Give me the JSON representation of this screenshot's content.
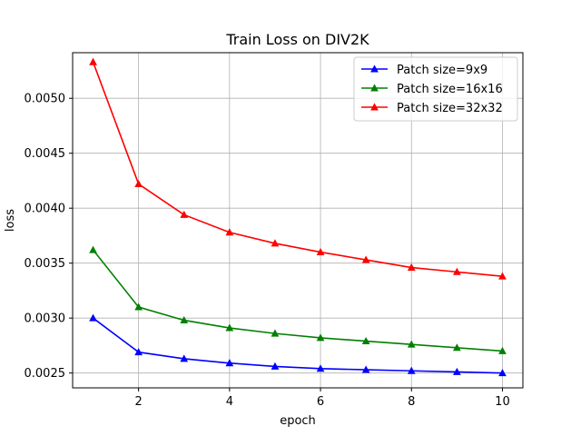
{
  "chart_data": {
    "type": "line",
    "title": "Train Loss on DIV2K",
    "xlabel": "epoch",
    "ylabel": "loss",
    "xlim": [
      0.55,
      10.45
    ],
    "ylim": [
      0.002365,
      0.005415
    ],
    "grid": true,
    "legend_position": "top-right",
    "x": [
      1,
      2,
      3,
      4,
      5,
      6,
      7,
      8,
      9,
      10
    ],
    "x_ticks": [
      2,
      4,
      6,
      8,
      10
    ],
    "x_tick_labels": [
      "2",
      "4",
      "6",
      "8",
      "10"
    ],
    "y_ticks": [
      0.0025,
      0.003,
      0.0035,
      0.004,
      0.0045,
      0.005
    ],
    "y_tick_labels": [
      "0.0025",
      "0.0030",
      "0.0035",
      "0.0040",
      "0.0045",
      "0.0050"
    ],
    "series": [
      {
        "name": "Patch size=9x9",
        "color": "#0000ff",
        "marker": "triangle-up",
        "values": [
          0.003,
          0.00269,
          0.00263,
          0.00259,
          0.00256,
          0.00254,
          0.00253,
          0.00252,
          0.00251,
          0.0025
        ]
      },
      {
        "name": "Patch size=16x16",
        "color": "#008000",
        "marker": "triangle-up",
        "values": [
          0.00362,
          0.0031,
          0.00298,
          0.00291,
          0.00286,
          0.00282,
          0.00279,
          0.00276,
          0.00273,
          0.0027
        ]
      },
      {
        "name": "Patch size=32x32",
        "color": "#ff0000",
        "marker": "triangle-up",
        "values": [
          0.00533,
          0.00422,
          0.00394,
          0.00378,
          0.00368,
          0.0036,
          0.00353,
          0.00346,
          0.00342,
          0.00338
        ]
      }
    ]
  }
}
